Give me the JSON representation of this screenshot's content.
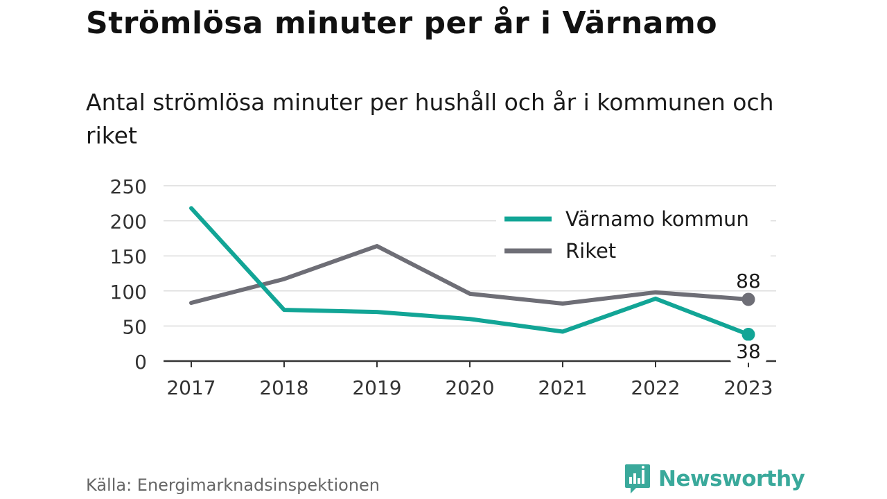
{
  "title": "Strömlösa minuter per år i Värnamo",
  "subtitle": "Antal strömlösa minuter per hushåll och år i kommunen och riket",
  "source": "Källa: Energimarknadsinspektionen",
  "brand": {
    "name": "Newsworthy",
    "icon": "newsworthy-logo-icon",
    "color": "#3aa99b"
  },
  "chart_data": {
    "type": "line",
    "x": [
      "2017",
      "2018",
      "2019",
      "2020",
      "2021",
      "2022",
      "2023"
    ],
    "ylim": [
      0,
      250
    ],
    "yticks": [
      0,
      50,
      100,
      150,
      200,
      250
    ],
    "grid": true,
    "legend_position": "top-right",
    "series": [
      {
        "name": "Värnamo kommun",
        "color": "#12a596",
        "values": [
          218,
          73,
          70,
          60,
          42,
          89,
          38
        ],
        "end_label": "38"
      },
      {
        "name": "Riket",
        "color": "#6e6e76",
        "values": [
          83,
          117,
          164,
          96,
          82,
          98,
          88
        ],
        "end_label": "88"
      }
    ]
  }
}
